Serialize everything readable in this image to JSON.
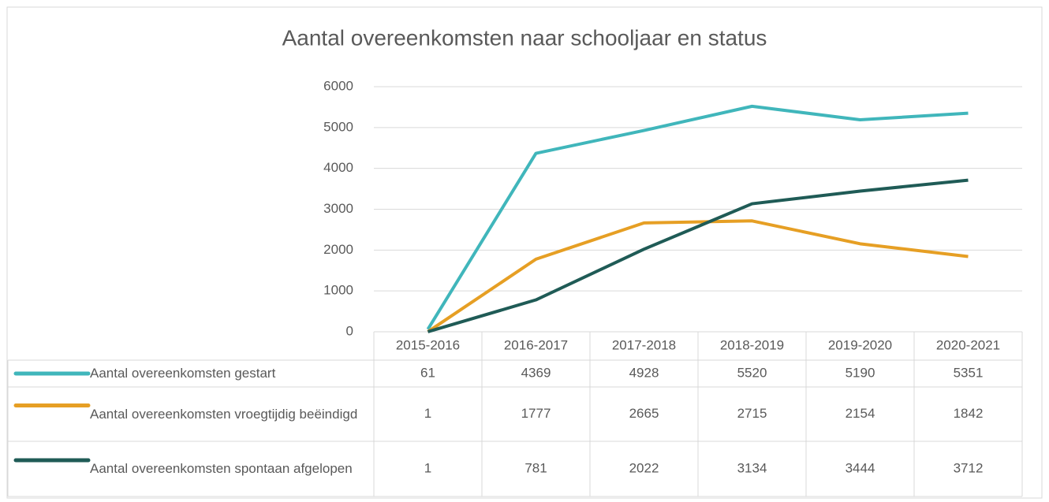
{
  "chart_data": {
    "type": "line",
    "title": "Aantal overeenkomsten naar schooljaar en status",
    "categories": [
      "2015-2016",
      "2016-2017",
      "2017-2018",
      "2018-2019",
      "2019-2020",
      "2020-2021"
    ],
    "series": [
      {
        "name": "Aantal overeenkomsten gestart",
        "color": "#40b6bb",
        "values": [
          61,
          4369,
          4928,
          5520,
          5190,
          5351
        ]
      },
      {
        "name": "Aantal overeenkomsten vroegtijdig beëindigd",
        "color": "#e69f24",
        "values": [
          1,
          1777,
          2665,
          2715,
          2154,
          1842
        ]
      },
      {
        "name": "Aantal overeenkomsten spontaan afgelopen",
        "color": "#1f5b56",
        "values": [
          1,
          781,
          2022,
          3134,
          3444,
          3712
        ]
      }
    ],
    "ylim": [
      0,
      6000
    ],
    "yticks": [
      0,
      1000,
      2000,
      3000,
      4000,
      5000,
      6000
    ],
    "grid": true,
    "data_table": true
  }
}
